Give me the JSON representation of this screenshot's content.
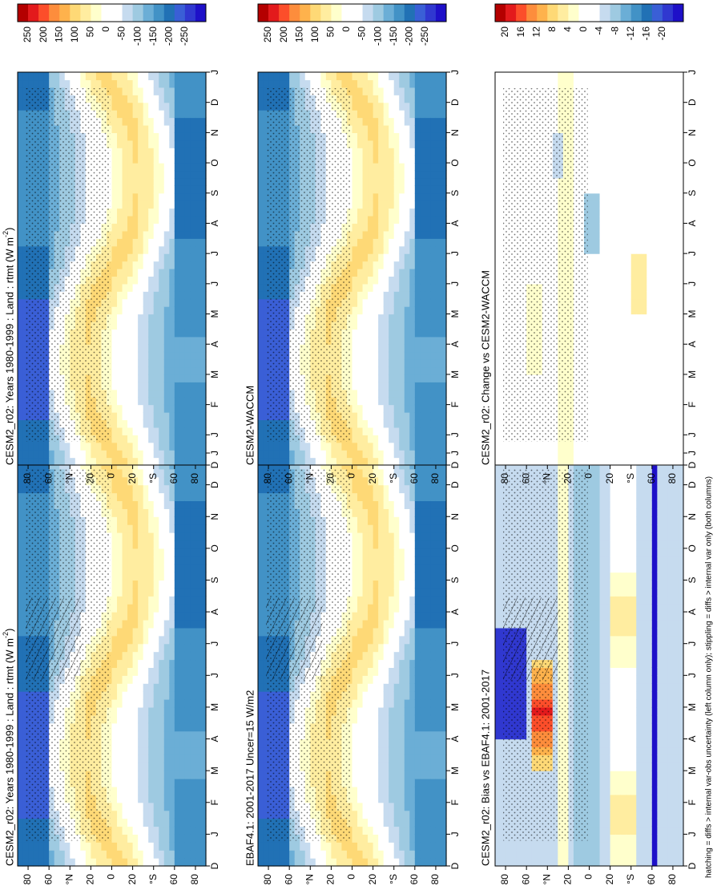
{
  "figure": {
    "footer": "hatching = diffs > internal var-obs uncertainty (left column only); stippling = diffs > internal var only (both columns)"
  },
  "colorbars": {
    "abs": {
      "labels": [
        "250",
        "200",
        "150",
        "100",
        "50",
        "0",
        "-50",
        "-100",
        "-150",
        "-200",
        "-250"
      ],
      "colors": [
        "#b40000",
        "#e31a1c",
        "#fc4e2a",
        "#fd8d3c",
        "#feb24c",
        "#fed976",
        "#ffeda0",
        "#ffffcc",
        "#ffffff",
        "#ffffff",
        "#c6dbef",
        "#9ecae1",
        "#6baed6",
        "#4292c6",
        "#2171b5",
        "#3a5fd6",
        "#3038d0",
        "#1e10c8"
      ]
    },
    "diff": {
      "labels": [
        "20",
        "16",
        "12",
        "8",
        "4",
        "0",
        "-4",
        "-8",
        "-12",
        "-16",
        "-20"
      ],
      "colors": [
        "#b40000",
        "#e31a1c",
        "#fc4e2a",
        "#fd8d3c",
        "#feb24c",
        "#fed976",
        "#ffeda0",
        "#ffffcc",
        "#ffffff",
        "#ffffff",
        "#c6dbef",
        "#9ecae1",
        "#6baed6",
        "#4292c6",
        "#2171b5",
        "#3a5fd6",
        "#3038d0",
        "#1e10c8"
      ]
    }
  },
  "axis": {
    "months": [
      "D",
      "J",
      "F",
      "M",
      "A",
      "M",
      "J",
      "J",
      "A",
      "S",
      "O",
      "N",
      "D",
      "J"
    ],
    "lat_labels": [
      "80",
      "60",
      "°N",
      "20",
      "0",
      "20",
      "°S",
      "60",
      "80"
    ]
  },
  "chart_data": [
    {
      "type": "heatmap",
      "title": "CESM2_r02: Years 1980-1999 : Land : rtmt (W m",
      "title_sup": "-2",
      "title_end": ")",
      "scale": "abs",
      "pattern": "base",
      "hatch": true
    },
    {
      "type": "heatmap",
      "title": "EBAF4.1: 2001-2017 Uncer=15 W/m2",
      "scale": "abs",
      "pattern": "base",
      "hatch": true
    },
    {
      "type": "heatmap",
      "title": "CESM2_r02: Bias vs EBAF4.1: 2001-2017",
      "scale": "diff",
      "pattern": "bias",
      "hatch": true
    },
    {
      "type": "heatmap",
      "title": "CESM2_r02: Years 1980-1999 : Land : rtmt (W m",
      "title_sup": "-2",
      "title_end": ")",
      "scale": "abs",
      "pattern": "base",
      "hatch": false
    },
    {
      "type": "heatmap",
      "title": "CESM2-WACCM",
      "scale": "abs",
      "pattern": "base",
      "hatch": false
    },
    {
      "type": "heatmap",
      "title": "CESM2_r02: Change vs CESM2-WACCM",
      "scale": "diff",
      "pattern": "change",
      "hatch": false
    }
  ]
}
